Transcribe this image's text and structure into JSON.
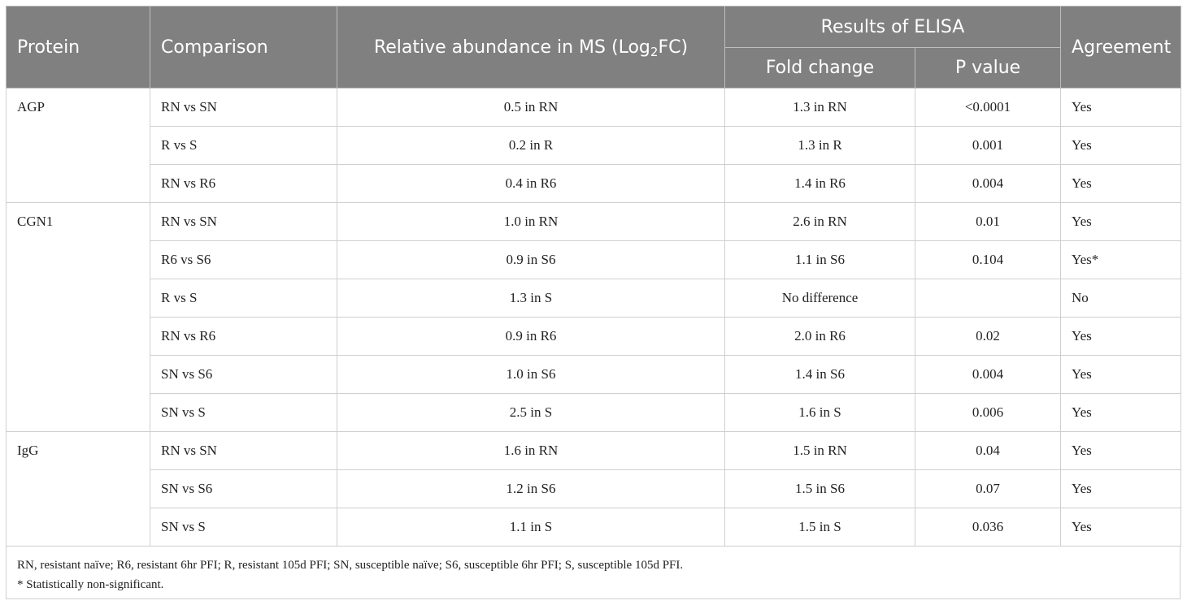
{
  "table": {
    "headers": {
      "protein": "Protein",
      "comparison": "Comparison",
      "relative_abundance_prefix": "Relative abundance in MS (Log",
      "relative_abundance_sub": "2",
      "relative_abundance_suffix": "FC)",
      "elisa_group": "Results of ELISA",
      "fold_change": "Fold change",
      "p_value": "P value",
      "agreement": "Agreement"
    },
    "groups": [
      {
        "protein": "AGP",
        "rows": [
          {
            "comparison": "RN vs SN",
            "relative_abundance": "0.5 in RN",
            "fold_change": "1.3 in RN",
            "p_value": "<0.0001",
            "agreement": "Yes"
          },
          {
            "comparison": "R vs S",
            "relative_abundance": "0.2 in R",
            "fold_change": "1.3 in R",
            "p_value": "0.001",
            "agreement": "Yes"
          },
          {
            "comparison": "RN vs R6",
            "relative_abundance": "0.4 in R6",
            "fold_change": "1.4 in R6",
            "p_value": "0.004",
            "agreement": "Yes"
          }
        ]
      },
      {
        "protein": "CGN1",
        "rows": [
          {
            "comparison": "RN vs SN",
            "relative_abundance": "1.0 in RN",
            "fold_change": "2.6 in RN",
            "p_value": "0.01",
            "agreement": "Yes"
          },
          {
            "comparison": "R6 vs S6",
            "relative_abundance": "0.9 in S6",
            "fold_change": "1.1 in S6",
            "p_value": "0.104",
            "agreement": "Yes*"
          },
          {
            "comparison": "R vs S",
            "relative_abundance": "1.3 in S",
            "fold_change": "No difference",
            "p_value": "",
            "agreement": "No"
          },
          {
            "comparison": "RN vs R6",
            "relative_abundance": "0.9 in R6",
            "fold_change": "2.0 in R6",
            "p_value": "0.02",
            "agreement": "Yes"
          },
          {
            "comparison": "SN vs S6",
            "relative_abundance": "1.0 in S6",
            "fold_change": "1.4 in S6",
            "p_value": "0.004",
            "agreement": "Yes"
          },
          {
            "comparison": "SN vs S",
            "relative_abundance": "2.5 in S",
            "fold_change": "1.6 in S",
            "p_value": "0.006",
            "agreement": "Yes"
          }
        ]
      },
      {
        "protein": "IgG",
        "rows": [
          {
            "comparison": "RN vs SN",
            "relative_abundance": "1.6 in RN",
            "fold_change": "1.5 in RN",
            "p_value": "0.04",
            "agreement": "Yes"
          },
          {
            "comparison": "SN vs S6",
            "relative_abundance": "1.2 in S6",
            "fold_change": "1.5 in S6",
            "p_value": "0.07",
            "agreement": "Yes"
          },
          {
            "comparison": "SN vs S",
            "relative_abundance": "1.1 in S",
            "fold_change": "1.5 in S",
            "p_value": "0.036",
            "agreement": "Yes"
          }
        ]
      }
    ],
    "footnotes": {
      "abbreviations": "RN, resistant naïve; R6, resistant 6hr PFI; R, resistant 105d PFI; SN, susceptible naïve; S6, susceptible 6hr PFI; S, susceptible 105d PFI.",
      "asterisk": "* Statistically non-significant."
    }
  }
}
